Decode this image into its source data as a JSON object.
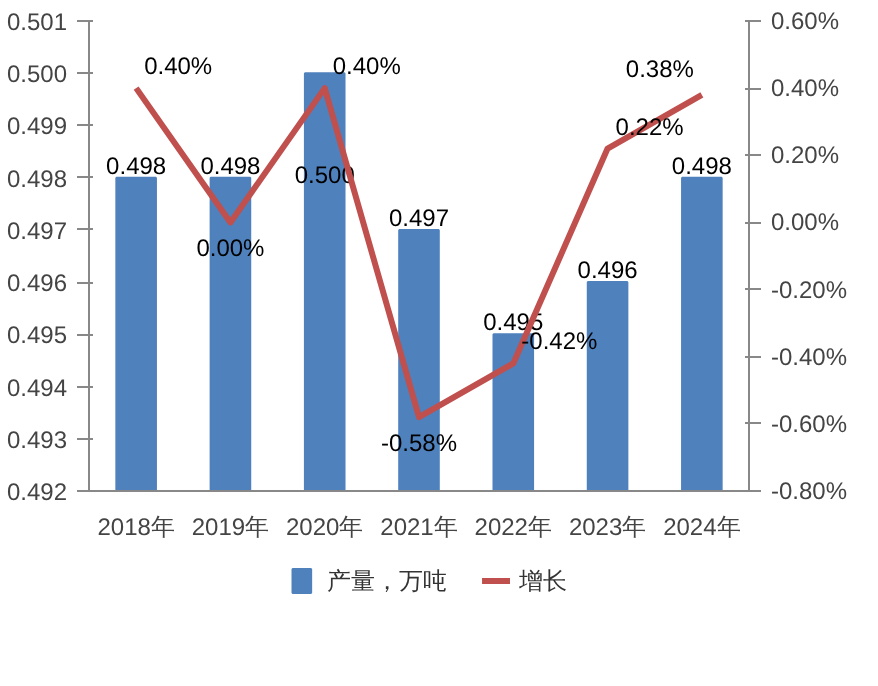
{
  "chart_data": {
    "type": "bar",
    "categories": [
      "2018年",
      "2019年",
      "2020年",
      "2021年",
      "2022年",
      "2023年",
      "2024年"
    ],
    "series": [
      {
        "name": "产量，万吨",
        "color": "#4f81bd",
        "values": [
          0.498,
          0.498,
          0.5,
          0.497,
          0.495,
          0.496,
          0.498
        ],
        "value_labels": [
          "0.498",
          "0.498",
          "0.500",
          "0.497",
          "0.495",
          "0.496",
          "0.498"
        ]
      },
      {
        "name": "增长",
        "type": "line",
        "axis": "y2",
        "color": "#c0504d",
        "values": [
          0.4,
          0.0,
          0.4,
          -0.58,
          -0.42,
          0.22,
          0.38
        ],
        "value_labels": [
          "0.40%",
          "0.00%",
          "0.40%",
          "-0.58%",
          "-0.42%",
          "0.22%",
          "0.38%"
        ]
      }
    ],
    "ylim": [
      0.492,
      0.501
    ],
    "yticks": [
      {
        "value": 0.492,
        "label": "0.492"
      },
      {
        "value": 0.493,
        "label": "0.493"
      },
      {
        "value": 0.494,
        "label": "0.494"
      },
      {
        "value": 0.495,
        "label": "0.495"
      },
      {
        "value": 0.496,
        "label": "0.496"
      },
      {
        "value": 0.497,
        "label": "0.497"
      },
      {
        "value": 0.498,
        "label": "0.498"
      },
      {
        "value": 0.499,
        "label": "0.499"
      },
      {
        "value": 0.5,
        "label": "0.500"
      },
      {
        "value": 0.501,
        "label": "0.501"
      }
    ],
    "y2lim": [
      -0.8,
      0.6
    ],
    "y2ticks": [
      {
        "value": -0.8,
        "label": "-0.80%"
      },
      {
        "value": -0.6,
        "label": "-0.60%"
      },
      {
        "value": -0.4,
        "label": "-0.40%"
      },
      {
        "value": -0.2,
        "label": "-0.20%"
      },
      {
        "value": 0,
        "label": "0.00%"
      },
      {
        "value": 0.2,
        "label": "0.20%"
      },
      {
        "value": 0.4,
        "label": "0.40%"
      },
      {
        "value": 0.6,
        "label": "0.60%"
      }
    ],
    "grid": false,
    "legend": "bottom"
  }
}
